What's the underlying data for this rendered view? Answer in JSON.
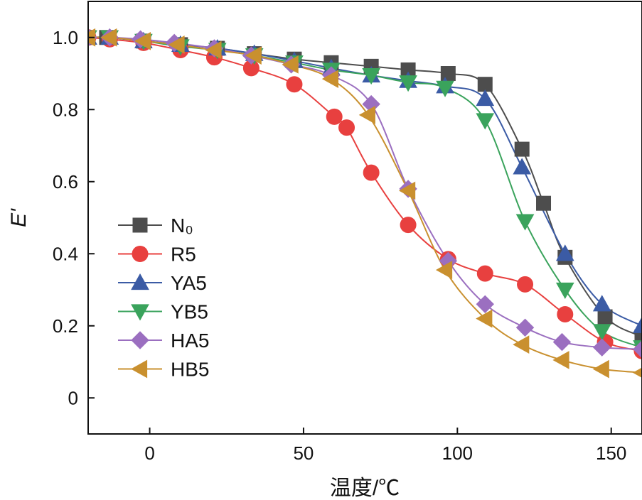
{
  "chart_data": {
    "type": "line",
    "title": "",
    "xlabel": "温度/℃",
    "ylabel": "E'",
    "xlim": [
      -20,
      160
    ],
    "ylim": [
      -0.1,
      1.1
    ],
    "xticks": [
      0,
      50,
      100,
      150
    ],
    "yticks": [
      0,
      0.2,
      0.4,
      0.6,
      0.8,
      1.0
    ],
    "ytick_labels": [
      "0",
      "0.2",
      "0.4",
      "0.6",
      "0.8",
      "1.0"
    ],
    "grid": false,
    "legend_position": "left-center",
    "series": [
      {
        "name": "N₀",
        "color": "#4d4d4d",
        "marker": "square",
        "x": [
          -20,
          -14,
          -2,
          10,
          22,
          34,
          47,
          59,
          72,
          84,
          97,
          109,
          121,
          128,
          135,
          148,
          160
        ],
        "y": [
          1.0,
          1.0,
          0.99,
          0.98,
          0.97,
          0.955,
          0.94,
          0.93,
          0.92,
          0.91,
          0.9,
          0.87,
          0.69,
          0.54,
          0.39,
          0.225,
          0.17
        ]
      },
      {
        "name": "R5",
        "color": "#e8403f",
        "marker": "circle",
        "x": [
          -20,
          -13,
          -2,
          10,
          21,
          33,
          47,
          60,
          64,
          72,
          84,
          97,
          109,
          122,
          135,
          148,
          160
        ],
        "y": [
          1.0,
          0.995,
          0.985,
          0.965,
          0.945,
          0.915,
          0.87,
          0.78,
          0.75,
          0.625,
          0.48,
          0.385,
          0.345,
          0.315,
          0.232,
          0.155,
          0.13
        ]
      },
      {
        "name": "YA5",
        "color": "#3b5ba5",
        "marker": "triangle-up",
        "x": [
          -20,
          -13,
          -2,
          10,
          22,
          34,
          47,
          59,
          72,
          84,
          96,
          109,
          121,
          135,
          147,
          160
        ],
        "y": [
          1.0,
          1.0,
          0.99,
          0.98,
          0.97,
          0.955,
          0.935,
          0.915,
          0.895,
          0.88,
          0.865,
          0.83,
          0.64,
          0.4,
          0.26,
          0.2
        ]
      },
      {
        "name": "YB5",
        "color": "#3aa35c",
        "marker": "triangle-down",
        "x": [
          -20,
          -13,
          -2,
          10,
          22,
          34,
          47,
          59,
          72,
          84,
          96,
          109,
          122,
          135,
          147,
          160
        ],
        "y": [
          1.0,
          1.0,
          0.99,
          0.975,
          0.965,
          0.95,
          0.93,
          0.91,
          0.895,
          0.875,
          0.86,
          0.77,
          0.49,
          0.3,
          0.185,
          0.14
        ]
      },
      {
        "name": "HA5",
        "color": "#9b6fc0",
        "marker": "diamond",
        "x": [
          -20,
          -13,
          -3,
          8,
          21,
          33,
          46,
          59,
          72,
          84,
          97,
          109,
          122,
          134,
          147,
          160
        ],
        "y": [
          1.0,
          1.0,
          0.995,
          0.985,
          0.97,
          0.95,
          0.925,
          0.895,
          0.815,
          0.58,
          0.38,
          0.26,
          0.195,
          0.155,
          0.14,
          0.135
        ]
      },
      {
        "name": "HB5",
        "color": "#c9902f",
        "marker": "triangle-left",
        "x": [
          -20,
          -13,
          -2,
          9,
          21,
          34,
          46,
          59,
          71,
          84,
          96,
          109,
          121,
          134,
          147,
          160
        ],
        "y": [
          1.0,
          1.0,
          0.99,
          0.98,
          0.965,
          0.95,
          0.925,
          0.885,
          0.785,
          0.575,
          0.355,
          0.22,
          0.148,
          0.105,
          0.08,
          0.07
        ]
      }
    ]
  }
}
